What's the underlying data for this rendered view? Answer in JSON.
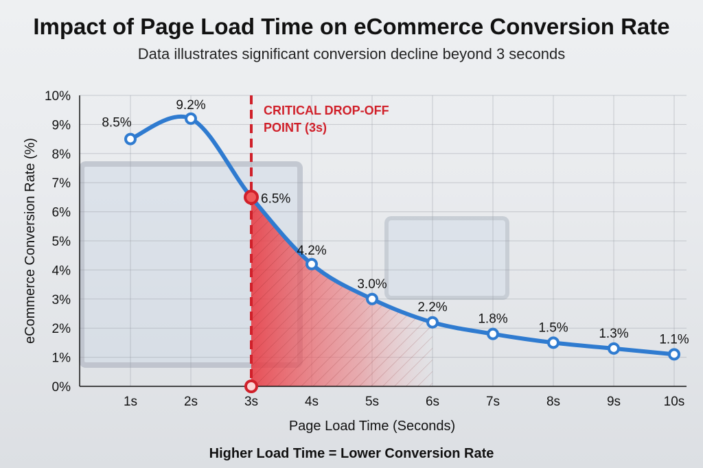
{
  "title": "Impact of Page Load Time on eCommerce Conversion Rate",
  "subtitle": "Data illustrates significant conversion decline beyond 3 seconds",
  "footer": "Higher Load Time = Lower Conversion Rate",
  "chart_data": {
    "type": "line",
    "xlabel": "Page Load Time (Seconds)",
    "ylabel": "eCommerce Conversion Rate (%)",
    "categories": [
      "1s",
      "2s",
      "3s",
      "4s",
      "5s",
      "6s",
      "7s",
      "8s",
      "9s",
      "10s"
    ],
    "x": [
      1,
      2,
      3,
      4,
      5,
      6,
      7,
      8,
      9,
      10
    ],
    "values": [
      8.5,
      9.2,
      6.5,
      4.2,
      3.0,
      2.2,
      1.8,
      1.5,
      1.3,
      1.1
    ],
    "data_labels": [
      "8.5%",
      "9.2%",
      "6.5%",
      "4.2%",
      "3.0%",
      "2.2%",
      "1.8%",
      "1.5%",
      "1.3%",
      "1.1%"
    ],
    "ylim": [
      0,
      10
    ],
    "yticks": [
      "0%",
      "1%",
      "2%",
      "3%",
      "4%",
      "5%",
      "6%",
      "7%",
      "8%",
      "9%",
      "10%"
    ],
    "grid": true,
    "line_color": "#2f7bd0",
    "annotation": {
      "x": 3,
      "text_lines": [
        "CRITICAL DROP-OFF",
        "POINT (3s)"
      ],
      "color": "#d0202a",
      "shaded_region": "under curve from 3s onward, red hatched"
    }
  }
}
